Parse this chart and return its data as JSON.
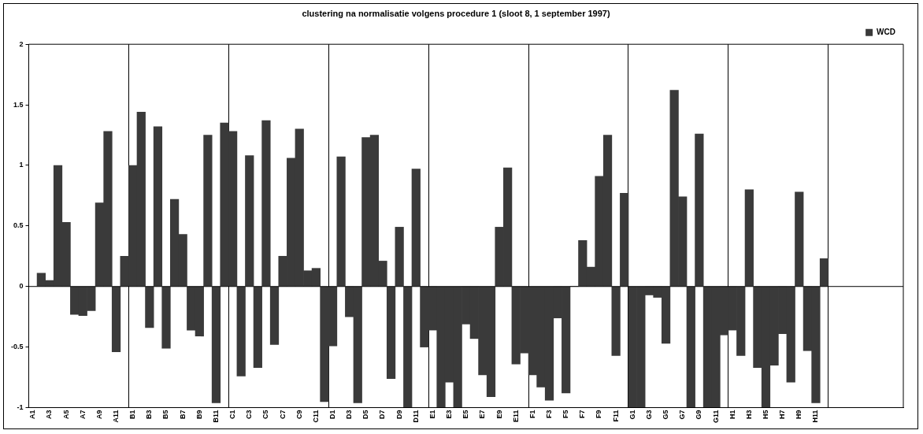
{
  "chart_data": {
    "type": "bar",
    "title": "clustering na normalisatie volgens procedure 1 (sloot 8, 1 september 1997)",
    "categories": [
      "A1",
      null,
      "A3",
      null,
      "A5",
      null,
      "A7",
      null,
      "A9",
      null,
      "A11",
      null,
      "B1",
      null,
      "B3",
      null,
      "B5",
      null,
      "B7",
      null,
      "B9",
      null,
      "B11",
      null,
      "C1",
      null,
      "C3",
      null,
      "C5",
      null,
      "C7",
      null,
      "C9",
      null,
      "C11",
      null,
      "D1",
      null,
      "D3",
      null,
      "D5",
      null,
      "D7",
      null,
      "D9",
      null,
      "D11",
      null,
      "E1",
      null,
      "E3",
      null,
      "E5",
      null,
      "E7",
      null,
      "E9",
      null,
      "E11",
      null,
      "F1",
      null,
      "F3",
      null,
      "F5",
      null,
      "F7",
      null,
      "F9",
      null,
      "F11",
      null,
      "G1",
      null,
      "G3",
      null,
      "G5",
      null,
      "G7",
      null,
      "G9",
      null,
      "G11",
      null,
      "H1",
      null,
      "H3",
      null,
      "H5",
      null,
      "H7",
      null,
      "H9",
      null,
      "H11",
      null,
      null,
      null,
      null,
      null,
      null,
      null,
      null,
      null,
      null
    ],
    "series": [
      {
        "name": "WCD",
        "color": "#3a3a3a",
        "values": [
          null,
          0.11,
          0.05,
          1.0,
          0.53,
          -0.23,
          -0.24,
          -0.2,
          0.69,
          1.28,
          -0.54,
          0.25,
          1.0,
          1.44,
          -0.34,
          1.32,
          -0.51,
          0.72,
          0.43,
          -0.36,
          -0.41,
          1.25,
          -0.96,
          1.35,
          1.28,
          -0.74,
          1.08,
          -0.67,
          1.37,
          -0.48,
          0.25,
          1.06,
          1.3,
          0.13,
          0.15,
          -0.95,
          -0.49,
          1.07,
          -0.25,
          -0.96,
          1.23,
          1.25,
          0.21,
          -0.76,
          0.49,
          -1.0,
          0.97,
          -0.5,
          -0.36,
          -1.0,
          -0.79,
          -1.0,
          -0.31,
          -0.43,
          -0.73,
          -0.91,
          0.49,
          0.98,
          -0.64,
          -0.55,
          -0.73,
          -0.83,
          -0.94,
          -0.26,
          -0.88,
          0,
          0.38,
          0.16,
          0.91,
          1.25,
          -0.57,
          0.77,
          -1.0,
          -1.0,
          -0.07,
          -0.09,
          -0.47,
          1.62,
          0.74,
          -1.0,
          1.26,
          -1.0,
          -1.0,
          -0.4,
          -0.36,
          -0.57,
          0.8,
          -0.67,
          -1.0,
          -0.65,
          -0.39,
          -0.79,
          0.78,
          -0.53,
          -0.96,
          0.23,
          null,
          null,
          null,
          null,
          null,
          null,
          null,
          null,
          null
        ]
      }
    ],
    "ylim": [
      -1,
      2
    ],
    "yticks": [
      -1,
      -0.5,
      0,
      0.5,
      1,
      1.5,
      2
    ],
    "grid": "x",
    "legend": "top right",
    "ref_lines": [
      {
        "axis": "y",
        "value": 0
      }
    ]
  }
}
